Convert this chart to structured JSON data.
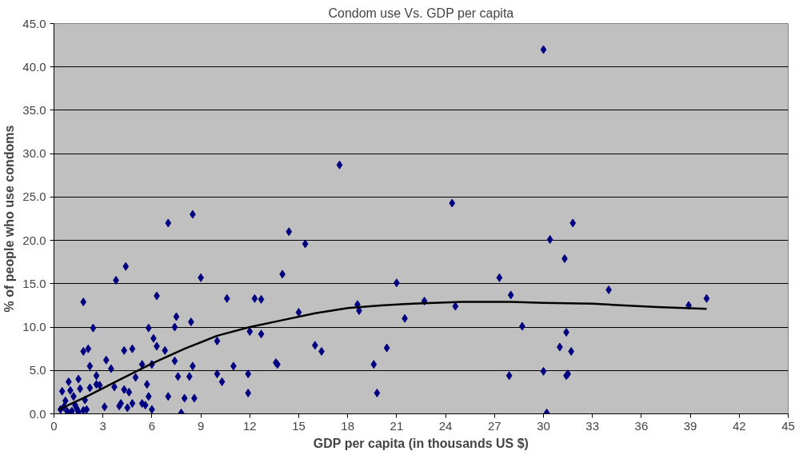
{
  "chart_data": {
    "type": "scatter",
    "title": "Condom use Vs. GDP per capita",
    "xlabel": "GDP per capita (in thousands US $)",
    "ylabel": "% of people who use condoms",
    "xlim": [
      0,
      45
    ],
    "ylim": [
      0,
      45
    ],
    "xticks": [
      0,
      3,
      6,
      9,
      12,
      15,
      18,
      21,
      24,
      27,
      30,
      33,
      36,
      39,
      42,
      45
    ],
    "yticks": [
      {
        "value": 0,
        "label": "0.0"
      },
      {
        "value": 5,
        "label": "5.0"
      },
      {
        "value": 10,
        "label": "10.0"
      },
      {
        "value": 15,
        "label": "15.0"
      },
      {
        "value": 20,
        "label": "20.0"
      },
      {
        "value": 25,
        "label": "25.0"
      },
      {
        "value": 30,
        "label": "30.0"
      },
      {
        "value": 35,
        "label": "35.0"
      },
      {
        "value": 40,
        "label": "40.0"
      },
      {
        "value": 45,
        "label": "45.0"
      }
    ],
    "grid": "y",
    "series": [
      {
        "marker": "diamond",
        "color": "#000080",
        "x": [
          30.0,
          17.5,
          24.4,
          8.5,
          7.0,
          31.8,
          14.4,
          30.4,
          15.4,
          31.3,
          4.4,
          14.0,
          9.0,
          27.3,
          3.8,
          21.0,
          34.0,
          28.0,
          6.3,
          10.6,
          12.3,
          12.7,
          40.0,
          1.8,
          22.7,
          18.6,
          38.9,
          24.6,
          18.7,
          15.0,
          7.5,
          21.5,
          7.4,
          8.4,
          28.7,
          2.4,
          5.8,
          12.0,
          12.7,
          31.4,
          6.1,
          10.0,
          6.3,
          16.0,
          16.4,
          4.3,
          6.8,
          1.8,
          2.1,
          20.4,
          31.0,
          31.7,
          4.8,
          7.4,
          19.6,
          11.0,
          13.6,
          13.7,
          3.2,
          5.4,
          6.0,
          8.5,
          2.2,
          3.5,
          10.0,
          11.9,
          30.0,
          31.5,
          31.4,
          27.9,
          8.3,
          7.6,
          2.6,
          5.0,
          1.5,
          0.9,
          10.3,
          5.7,
          2.8,
          3.7,
          4.3,
          4.6,
          0.5,
          1.0,
          1.6,
          2.2,
          11.9,
          19.8,
          7.0,
          8.6,
          8.0,
          5.8,
          1.2,
          0.7,
          1.9,
          4.1,
          4.8,
          3.1,
          5.4,
          6.0,
          7.8,
          30.2,
          0.4,
          0.8,
          1.1,
          1.4,
          1.8,
          2.0,
          2.6,
          1.3,
          0.6,
          4.0,
          5.6,
          4.5,
          1.0,
          1.5
        ],
        "values": [
          42.0,
          28.7,
          24.3,
          23.0,
          22.0,
          22.0,
          21.0,
          20.1,
          19.6,
          17.9,
          17.0,
          16.1,
          15.7,
          15.7,
          15.4,
          15.1,
          14.3,
          13.7,
          13.6,
          13.3,
          13.3,
          13.2,
          13.3,
          12.9,
          13.0,
          12.6,
          12.5,
          12.4,
          11.9,
          11.7,
          11.2,
          11.0,
          10.0,
          10.6,
          10.1,
          9.9,
          9.9,
          9.5,
          9.2,
          9.4,
          8.7,
          8.4,
          7.8,
          7.9,
          7.2,
          7.3,
          7.3,
          7.2,
          7.5,
          7.6,
          7.7,
          7.2,
          7.5,
          6.1,
          5.7,
          5.5,
          5.9,
          5.7,
          6.2,
          5.7,
          5.7,
          5.5,
          5.5,
          5.2,
          4.6,
          4.6,
          4.9,
          4.6,
          4.4,
          4.4,
          4.3,
          4.3,
          4.4,
          4.2,
          4.0,
          3.7,
          3.7,
          3.4,
          3.3,
          3.1,
          2.8,
          2.5,
          2.6,
          2.7,
          2.9,
          3.0,
          2.4,
          2.4,
          2.0,
          1.8,
          1.8,
          2.0,
          2.0,
          1.5,
          1.6,
          1.2,
          1.2,
          0.8,
          1.2,
          0.5,
          0.1,
          0.1,
          0.5,
          0.3,
          0.3,
          0.6,
          0.4,
          0.5,
          3.4,
          1.0,
          0.8,
          0.9,
          1.0,
          0.7,
          0.1,
          0.2
        ]
      },
      {
        "type": "line",
        "marker": "none",
        "line_style": "solid",
        "color": "#000000",
        "x": [
          0.3,
          2,
          4,
          6,
          8,
          10,
          12,
          14,
          16,
          18,
          20,
          22,
          25,
          28,
          30,
          33,
          35,
          37,
          40
        ],
        "values": [
          0.5,
          2.0,
          3.9,
          5.8,
          7.5,
          9.0,
          10.0,
          10.8,
          11.6,
          12.2,
          12.5,
          12.7,
          12.9,
          12.9,
          12.8,
          12.7,
          12.5,
          12.3,
          12.1
        ]
      }
    ]
  }
}
